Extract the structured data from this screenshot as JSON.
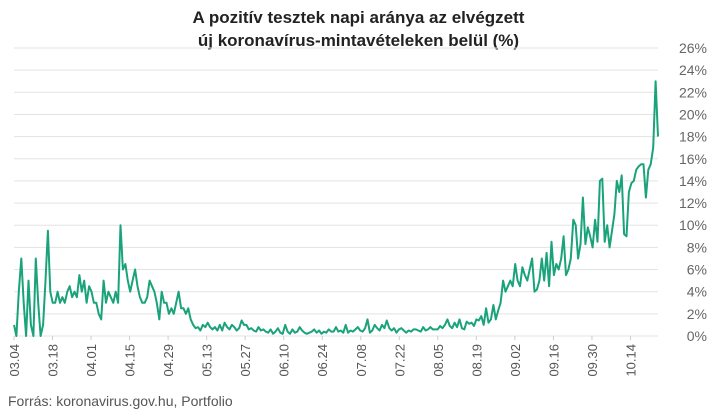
{
  "title_line1": "A pozitív tesztek napi aránya az elvégzett",
  "title_line2": "új koronavírus-mintavételeken belül (%)",
  "source": "Forrás: koronavirus.gov.hu, Portfolio",
  "colors": {
    "line": "#1aa37a",
    "grid": "#e3e3e3",
    "text": "#666666"
  },
  "chart_data": {
    "type": "line",
    "title": "A pozitív tesztek napi aránya az elvégzett új koronavírus-mintavételeken belül (%)",
    "x_start": "2020-03-04",
    "x_end": "2020-10-24",
    "x_tick_labels": [
      "03.04",
      "03.18",
      "04.01",
      "04.15",
      "04.29",
      "05.13",
      "05.27",
      "06.10",
      "06.24",
      "07.08",
      "07.22",
      "08.05",
      "08.19",
      "09.02",
      "09.16",
      "09.30",
      "10.14"
    ],
    "y_tick_labels": [
      "0%",
      "2%",
      "4%",
      "6%",
      "8%",
      "10%",
      "12%",
      "14%",
      "16%",
      "18%",
      "20%",
      "22%",
      "24%",
      "26%"
    ],
    "ylim": [
      0,
      26
    ],
    "grid": "horizontal",
    "series": [
      {
        "values": [
          1,
          0,
          4,
          7,
          3,
          0,
          5,
          1,
          0,
          7,
          3,
          0,
          1,
          5,
          9.5,
          4,
          3,
          3,
          4,
          3,
          3.5,
          3,
          4,
          4.5,
          3.5,
          4,
          3.5,
          5.5,
          4,
          5,
          3,
          4.5,
          4,
          3,
          3,
          2,
          1.5,
          5,
          3,
          4,
          3.5,
          3,
          4,
          3,
          10,
          6,
          6.5,
          5,
          4,
          5,
          6,
          4.5,
          3.5,
          3,
          3,
          3.5,
          5,
          4.5,
          4,
          3,
          1.5,
          4,
          3,
          3,
          2,
          2.5,
          2,
          3,
          4,
          2.5,
          2.5,
          2,
          2.5,
          1.5,
          1,
          0.7,
          0.8,
          0.5,
          1,
          0.8,
          1.2,
          0.8,
          0.6,
          0.8,
          0.5,
          1,
          0.5,
          1.2,
          0.8,
          0.6,
          1,
          0.8,
          0.5,
          0.7,
          1.4,
          1,
          1,
          0.6,
          0.7,
          0.5,
          0.4,
          0.8,
          0.5,
          0.6,
          0.4,
          0.3,
          0.6,
          0.2,
          0.4,
          0.7,
          0.3,
          0.2,
          1,
          0.4,
          0.2,
          0.6,
          0.3,
          0.4,
          0.8,
          0.5,
          0.3,
          0.2,
          0.3,
          0.4,
          0.6,
          0.3,
          0.5,
          0.2,
          0.4,
          0.3,
          0.6,
          0.4,
          0.4,
          0.8,
          0.4,
          0.5,
          0.3,
          1,
          0.3,
          0.5,
          0.4,
          0.6,
          0.8,
          0.5,
          0.4,
          0.7,
          1.5,
          0.3,
          0.5,
          1,
          0.7,
          0.5,
          1,
          0.7,
          1.4,
          0.7,
          0.5,
          0.7,
          0.3,
          0.6,
          0.7,
          0.5,
          0.3,
          0.5,
          0.4,
          0.6,
          0.6,
          0.5,
          0.4,
          0.8,
          0.5,
          0.6,
          0.8,
          0.6,
          0.6,
          0.6,
          0.9,
          0.7,
          1,
          1.5,
          0.9,
          0.7,
          1.2,
          0.8,
          1.5,
          0.7,
          0.6,
          1.3,
          1.1,
          1.2,
          0.9,
          1.5,
          1.4,
          1.8,
          1,
          2.5,
          1.2,
          1.5,
          2.8,
          1.5,
          2.3,
          3,
          5,
          4,
          4.5,
          5,
          4.5,
          6.5,
          5,
          4.5,
          6.2,
          5.5,
          5,
          6,
          7,
          4,
          4.2,
          5,
          7,
          5,
          7.5,
          4.5,
          8.5,
          5.5,
          6.5,
          6,
          7,
          9,
          5.5,
          6,
          7,
          10.5,
          10,
          7,
          8.3,
          12.5,
          8.3,
          9.8,
          9,
          8,
          10.5,
          8.5,
          14,
          14.2,
          8.5,
          10,
          8,
          9.5,
          11,
          14,
          13,
          14.5,
          9.2,
          9,
          13,
          13.8,
          14,
          15,
          15.3,
          15.5,
          15.5,
          12.5,
          15,
          15.5,
          17,
          23,
          18
        ]
      }
    ]
  }
}
